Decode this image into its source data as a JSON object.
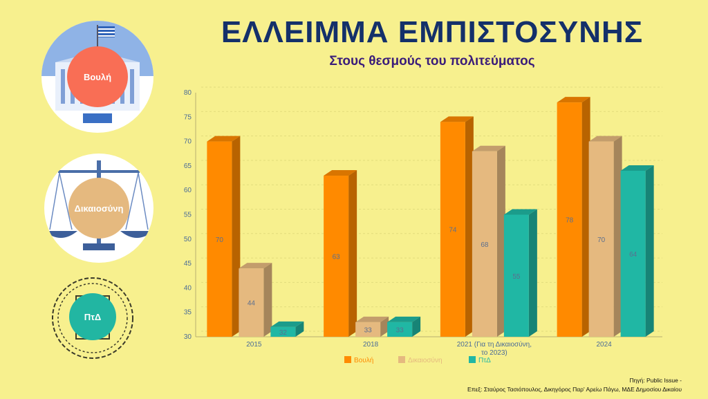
{
  "header": {
    "title": "ΕΛΛΕΙΜΜΑ ΕΜΠΙΣΤΟΣΥΝΗΣ",
    "subtitle": "Στους θεσμούς του πολιτεύματος"
  },
  "sidebar": {
    "items": [
      {
        "label": "Βουλή",
        "icon": "parliament-icon",
        "color": "#f96e55"
      },
      {
        "label": "Δικαιοσύνη",
        "icon": "scales-of-justice-icon",
        "color": "#e5b97f"
      },
      {
        "label": "ΠτΔ",
        "icon": "presidential-seal-icon",
        "color": "#22b6a2"
      }
    ]
  },
  "source": {
    "line1": "Πηγή: Public Issue -",
    "line2": "Επεξ: Σταύρος Τασιόπουλος, Δικηγόρος Παρ' Αρείω Πάγω, ΜΔΕ Δημοσίου Δικαίου"
  },
  "chart_data": {
    "type": "bar",
    "categories": [
      [
        "2015"
      ],
      [
        "2018"
      ],
      [
        "2021 (Για τη Δικαιοσύνη,",
        "το 2023)"
      ],
      [
        "2024"
      ]
    ],
    "series": [
      {
        "name": "Βουλή",
        "values": [
          70,
          63,
          74,
          78
        ],
        "color": "#ff8a00"
      },
      {
        "name": "Δικαιοσύνη",
        "values": [
          44,
          33,
          68,
          70
        ],
        "color": "#e5b97f"
      },
      {
        "name": "ΠτΔ",
        "values": [
          32,
          33,
          55,
          64
        ],
        "color": "#20b7a4"
      }
    ],
    "ylim": [
      30,
      80
    ],
    "yticks": [
      30,
      35,
      40,
      45,
      50,
      55,
      60,
      65,
      70,
      75,
      80
    ],
    "grid": true,
    "legend": "bottom"
  }
}
